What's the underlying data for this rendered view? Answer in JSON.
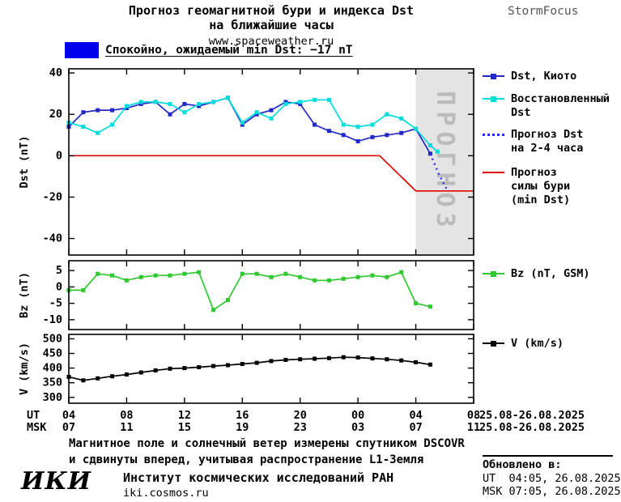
{
  "header": {
    "title_line1": "Прогноз геомагнитной бури и индекса Dst",
    "title_line2": "на ближайшие часы",
    "website": "www.spaceweather.ru",
    "brand": "StormFocus"
  },
  "status": {
    "text": "Спокойно, ожидаемый min Dst: −17 nT",
    "swatch_color": "#0000ee"
  },
  "chart_data": [
    {
      "type": "line",
      "ylabel": "Dst (nT)",
      "ylim": [
        -48,
        42
      ],
      "yticks": [
        40,
        20,
        0,
        -20,
        -40
      ],
      "xlim": [
        4,
        32
      ],
      "forecast_region": {
        "start": 28,
        "end": 32,
        "label": "ПРОГНОЗ",
        "fill": "#e4e4e4",
        "label_color": "#bbbbbb"
      },
      "series": [
        {
          "name": "Dst, Киото",
          "color": "#2228c8",
          "marker": "square",
          "x": [
            4,
            5,
            6,
            7,
            8,
            9,
            10,
            11,
            12,
            13,
            14,
            15,
            16,
            17,
            18,
            19,
            20,
            21,
            22,
            23,
            24,
            25,
            26,
            27,
            28,
            29
          ],
          "y": [
            14,
            21,
            22,
            22,
            23,
            25,
            26,
            20,
            25,
            24,
            26,
            28,
            15,
            20,
            22,
            26,
            25,
            15,
            12,
            10,
            7,
            9,
            10,
            11,
            13,
            1
          ]
        },
        {
          "name": "Восстановленный Dst",
          "color": "#00dcdc",
          "marker": "square",
          "x": [
            4,
            5,
            6,
            7,
            8,
            9,
            10,
            11,
            12,
            13,
            14,
            15,
            16,
            17,
            18,
            19,
            20,
            21,
            22,
            23,
            24,
            25,
            26,
            27,
            28,
            29,
            29.5
          ],
          "y": [
            16,
            14,
            11,
            15,
            24,
            26,
            26,
            25,
            21,
            25,
            26,
            28,
            16,
            21,
            18,
            25,
            26,
            27,
            27,
            15,
            14,
            15,
            20,
            18,
            13,
            5,
            2
          ]
        },
        {
          "name": "Прогноз Dst на 2-4 часа",
          "color": "#2a2af0",
          "style": "dotted",
          "x": [
            29,
            29.6,
            30.2
          ],
          "y": [
            1,
            -9,
            -17
          ]
        },
        {
          "name": "Прогноз силы бури (min Dst)",
          "color": "#e00000",
          "x": [
            4,
            25.5,
            28,
            32
          ],
          "y": [
            0,
            0,
            -17,
            -17
          ]
        }
      ]
    },
    {
      "type": "line",
      "ylabel": "Bz (nT)",
      "ylim": [
        -13,
        8
      ],
      "yticks": [
        5,
        0,
        -5,
        -10
      ],
      "series": [
        {
          "name": "Bz (nT, GSM)",
          "color": "#30c830",
          "marker": "square",
          "x": [
            4,
            5,
            6,
            7,
            8,
            9,
            10,
            11,
            12,
            13,
            14,
            15,
            16,
            17,
            18,
            19,
            20,
            21,
            22,
            23,
            24,
            25,
            26,
            27,
            28,
            29
          ],
          "y": [
            -1,
            -1,
            4,
            3.5,
            2,
            3,
            3.5,
            3.5,
            4,
            4.5,
            -7,
            -4,
            4,
            4,
            3,
            4,
            3,
            2,
            2,
            2.5,
            3,
            3.5,
            3,
            4.5,
            -5,
            -6
          ]
        }
      ]
    },
    {
      "type": "line",
      "ylabel": "V (km/s)",
      "ylim": [
        280,
        515
      ],
      "yticks": [
        500,
        450,
        400,
        350,
        300
      ],
      "series": [
        {
          "name": "V (km/s)",
          "color": "#000000",
          "marker": "square",
          "x": [
            4,
            5,
            6,
            7,
            8,
            9,
            10,
            11,
            12,
            13,
            14,
            15,
            16,
            17,
            18,
            19,
            20,
            21,
            22,
            23,
            24,
            25,
            26,
            27,
            28,
            29
          ],
          "y": [
            370,
            358,
            365,
            372,
            378,
            385,
            392,
            398,
            400,
            403,
            407,
            410,
            414,
            418,
            424,
            428,
            430,
            432,
            434,
            437,
            436,
            433,
            430,
            426,
            420,
            412
          ]
        }
      ]
    }
  ],
  "x_axis": {
    "ut_label": "UT",
    "msk_label": "MSK",
    "ticks": [
      4,
      8,
      12,
      16,
      20,
      24,
      28,
      32
    ],
    "ut_hours": [
      "04",
      "08",
      "12",
      "16",
      "20",
      "00",
      "04",
      "08"
    ],
    "msk_hours": [
      "07",
      "11",
      "15",
      "19",
      "23",
      "03",
      "07",
      "11"
    ],
    "ut_date": "25.08-26.08.2025",
    "msk_date": "25.08-26.08.2025"
  },
  "legend": {
    "dst": [
      {
        "lines": [
          "Dst, Киото"
        ]
      },
      {
        "lines": [
          "Восстановленный",
          "Dst"
        ]
      },
      {
        "lines": [
          "Прогноз Dst",
          "на 2-4 часа"
        ]
      },
      {
        "lines": [
          "Прогноз",
          "силы бури",
          "(min Dst)"
        ]
      }
    ],
    "bz": {
      "lines": [
        "Bz (nT, GSM)"
      ]
    },
    "v": {
      "lines": [
        "V (km/s)"
      ]
    }
  },
  "footer": {
    "note_line1": "Магнитное поле и солнечный ветер измерены спутником DSCOVR",
    "note_line2": "и сдвинуты вперед, учитывая распространение L1-Земля",
    "logo": "ИКИ",
    "institute": "Институт космических исследований РАН",
    "institute_url": "iki.cosmos.ru",
    "updated_label": "Обновлено в:",
    "updated_ut": "UT  04:05, 26.08.2025",
    "updated_msk": "MSK 07:05, 26.08.2025"
  }
}
